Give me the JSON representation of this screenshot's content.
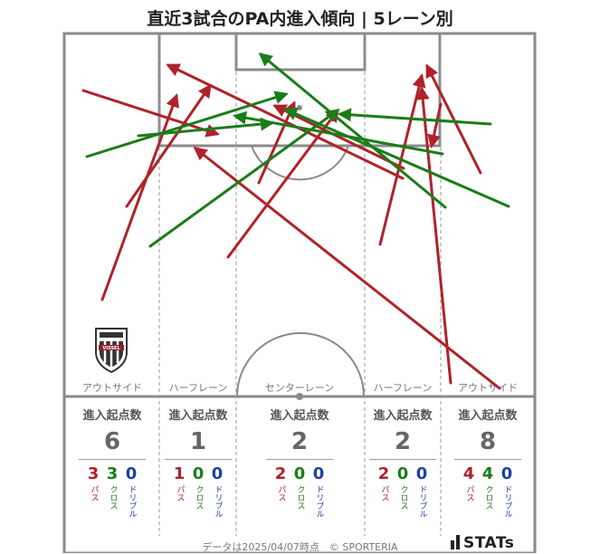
{
  "title": "直近3試合のPA内進入傾向 | 5レーン別",
  "lanes": [
    {
      "label": "アウトサイド"
    },
    {
      "label": "ハーフレーン"
    },
    {
      "label": "センターレーン"
    },
    {
      "label": "ハーフレーン"
    },
    {
      "label": "アウトサイド"
    }
  ],
  "stats_header": "進入起点数",
  "breakdown_labels": {
    "pass": "パス",
    "cross": "クロス",
    "dribble": "ドリブル"
  },
  "colors": {
    "pass": "#b0222a",
    "cross": "#1a7d1a",
    "dribble": "#1f3fa8",
    "pitch_line": "#8a8a8a"
  },
  "chart_data": {
    "type": "table",
    "lanes": [
      "アウトサイド",
      "ハーフレーン",
      "センターレーン",
      "ハーフレーン",
      "アウトサイド"
    ],
    "series": [
      {
        "name": "パス",
        "values": [
          3,
          1,
          2,
          2,
          4
        ]
      },
      {
        "name": "クロス",
        "values": [
          3,
          0,
          0,
          0,
          4
        ]
      },
      {
        "name": "ドリブル",
        "values": [
          0,
          0,
          0,
          0,
          0
        ]
      }
    ],
    "totals": [
      6,
      1,
      2,
      2,
      8
    ]
  },
  "footer": {
    "date": "データは2025/04/07時点　© SPORTERIA",
    "brand": "STATs"
  },
  "crest_icon": "vissel-kobe-crest-icon"
}
